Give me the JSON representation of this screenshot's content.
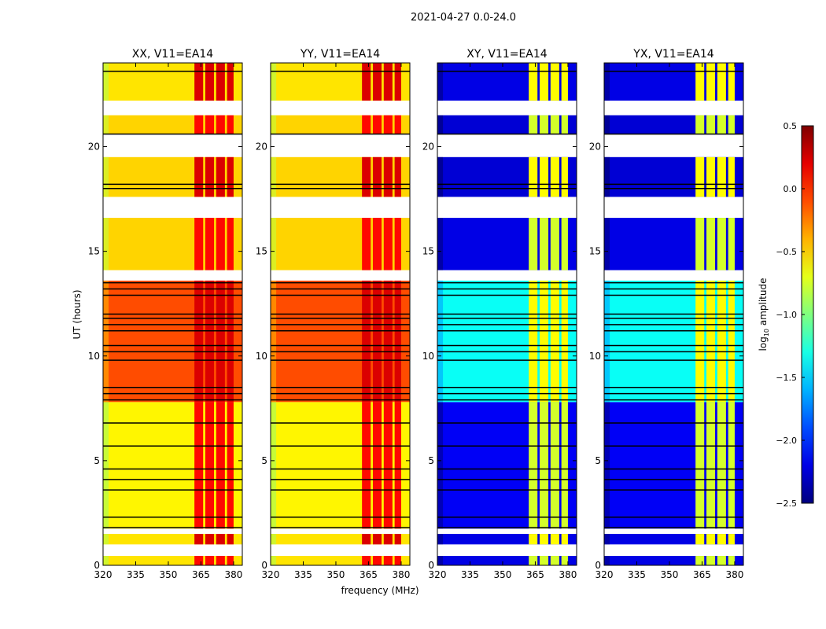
{
  "chart_data": {
    "type": "heatmap",
    "title": "2021-04-27 0.0-24.0",
    "xlabel": "frequency (MHz)",
    "ylabel": "UT (hours)",
    "xlim": [
      320,
      384
    ],
    "ylim": [
      0,
      24
    ],
    "xticks": [
      320,
      335,
      350,
      365,
      380
    ],
    "yticks": [
      0,
      5,
      10,
      15,
      20
    ],
    "panels": [
      {
        "title": "XX, V11=EA14",
        "kind": "parallel"
      },
      {
        "title": "YY, V11=EA14",
        "kind": "parallel"
      },
      {
        "title": "XY, V11=EA14",
        "kind": "cross"
      },
      {
        "title": "YX, V11=EA14",
        "kind": "cross"
      }
    ],
    "segments": [
      {
        "t": [
          0,
          0.45
        ],
        "parallel": -0.55,
        "cross": -2.2
      },
      {
        "t": [
          1.0,
          1.5
        ],
        "parallel": -0.55,
        "cross": -2.2
      },
      {
        "t": [
          1.75,
          7.8
        ],
        "parallel": -0.6,
        "cross": -2.15
      },
      {
        "t": [
          7.8,
          13.6
        ],
        "parallel": -0.1,
        "cross": -1.35
      },
      {
        "t": [
          14.1,
          16.6
        ],
        "parallel": -0.5,
        "cross": -2.2
      },
      {
        "t": [
          17.6,
          19.5
        ],
        "parallel": -0.5,
        "cross": -2.25
      },
      {
        "t": [
          20.6,
          21.5
        ],
        "parallel": -0.5,
        "cross": -2.25
      },
      {
        "t": [
          22.2,
          24
        ],
        "parallel": -0.55,
        "cross": -2.2
      }
    ],
    "rfi_bands_mhz": [
      [
        362,
        366
      ],
      [
        367,
        371
      ],
      [
        372,
        376
      ],
      [
        377,
        380
      ]
    ],
    "rfi_level": {
      "parallel": 0.15,
      "cross": -0.7
    },
    "flag_lines_hours": [
      23.6,
      20.6,
      18.2,
      18.0,
      13.5,
      13.2,
      12.9,
      12.0,
      11.8,
      11.5,
      11.2,
      10.5,
      10.2,
      9.8,
      8.5,
      8.2,
      7.9,
      6.8,
      5.7,
      4.6,
      4.1,
      3.6,
      2.3,
      1.8
    ],
    "colorbar": {
      "label": "log10 amplitude",
      "range": [
        -2.5,
        0.5
      ],
      "ticks": [
        "0.5",
        "0.0",
        "−0.5",
        "−1.0",
        "−1.5",
        "−2.0",
        "−2.5"
      ],
      "colormap": "jet"
    }
  }
}
